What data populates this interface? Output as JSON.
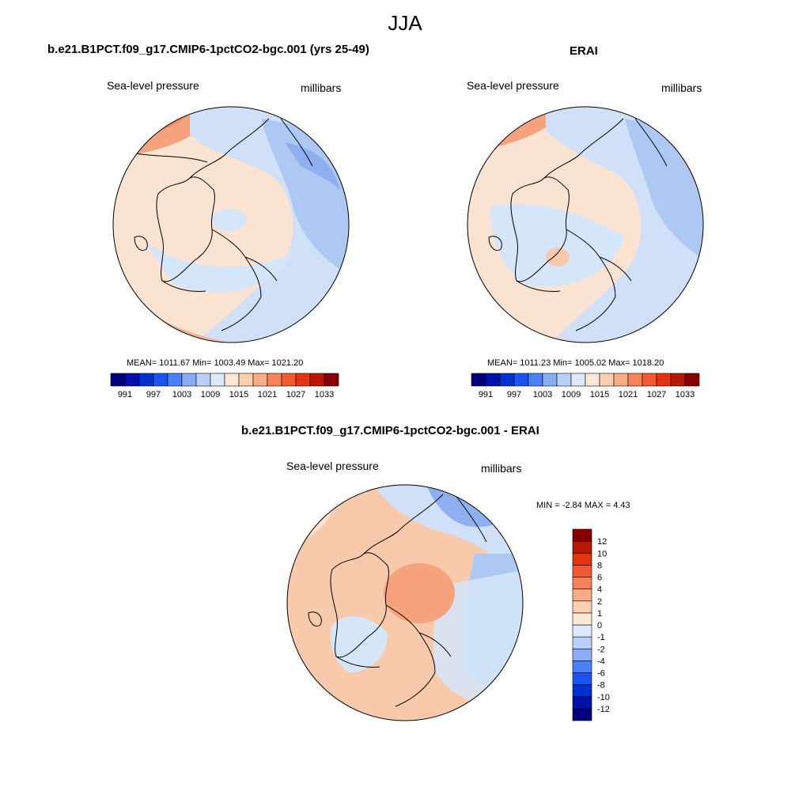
{
  "season": "JJA",
  "panels": {
    "model": {
      "title": "b.e21.B1PCT.f09_g17.CMIP6-1pctCO2-bgc.001 (yrs 25-49)",
      "left_label": "Sea-level pressure",
      "right_label": "millibars",
      "stats": "MEAN= 1011.67  Min= 1003.49  Max= 1021.20"
    },
    "obs": {
      "title": "ERAI",
      "left_label": "Sea-level pressure",
      "right_label": "millibars",
      "stats": "MEAN= 1011.23  Min= 1005.02  Max= 1018.20"
    },
    "diff": {
      "title": "b.e21.B1PCT.f09_g17.CMIP6-1pctCO2-bgc.001 - ERAI",
      "left_label": "Sea-level pressure",
      "right_label": "millibars",
      "stats": "MIN =  -2.84 MAX =   4.43"
    }
  },
  "colorbars": {
    "abs": {
      "colors": [
        "#00007f",
        "#0010a8",
        "#0030d0",
        "#1a55f0",
        "#4a80f5",
        "#8aaef5",
        "#b8cff8",
        "#dde9fb",
        "#fde8d7",
        "#fbcfb0",
        "#f8ab85",
        "#f6825a",
        "#f05a2e",
        "#e03510",
        "#b81800",
        "#860000"
      ],
      "tick_labels": [
        "991",
        "997",
        "1003",
        "1009",
        "1015",
        "1021",
        "1027",
        "1033"
      ]
    },
    "diff": {
      "colors": [
        "#00007f",
        "#0010a8",
        "#0030d0",
        "#1a55f0",
        "#4a80f5",
        "#8aaef5",
        "#b8cff8",
        "#dde9fb",
        "#fde8d7",
        "#fbcfb0",
        "#f8ab85",
        "#f6825a",
        "#f05a2e",
        "#e03510",
        "#b81800",
        "#860000"
      ],
      "tick_labels": [
        "-12",
        "-10",
        "-8",
        "-6",
        "-4",
        "-2",
        "-1",
        "0",
        "1",
        "2",
        "4",
        "6",
        "8",
        "10",
        "12"
      ]
    }
  }
}
